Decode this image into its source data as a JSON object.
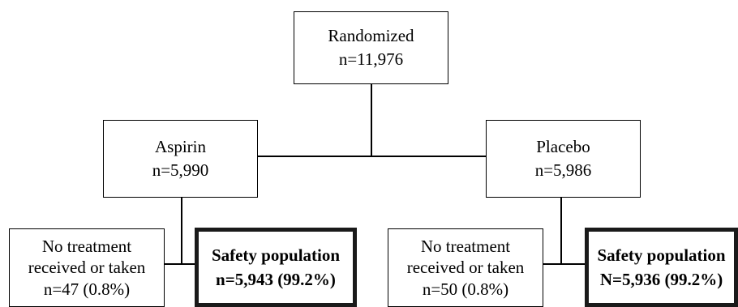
{
  "randomized": {
    "title": "Randomized",
    "count": "n=11,976"
  },
  "aspirin": {
    "title": "Aspirin",
    "count": "n=5,990",
    "no_treatment": {
      "line1": "No treatment",
      "line2": "received or taken",
      "count": "n=47 (0.8%)"
    },
    "safety": {
      "title": "Safety population",
      "count": "n=5,943 (99.2%)"
    }
  },
  "placebo": {
    "title": "Placebo",
    "count": "n=5,986",
    "no_treatment": {
      "line1": "No treatment",
      "line2": "received or taken",
      "count": "n=50 (0.8%)"
    },
    "safety": {
      "title": "Safety population",
      "count": "N=5,936 (99.2%)"
    }
  }
}
